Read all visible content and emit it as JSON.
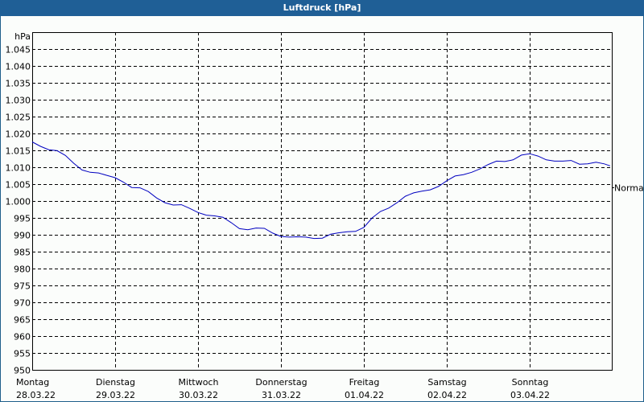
{
  "window": {
    "title": "Luftdruck [hPa]"
  },
  "colors": {
    "titlebar": "#1f5f96",
    "line": "#0000c0",
    "grid": "#000000",
    "background": "#fbfdfb"
  },
  "chart_data": {
    "type": "line",
    "title": "Luftdruck [hPa]",
    "xlabel": "",
    "ylabel": "hPa",
    "ylim": [
      950,
      1050
    ],
    "yticks": [
      950,
      955,
      960,
      965,
      970,
      975,
      980,
      985,
      990,
      995,
      1000,
      1005,
      1010,
      1015,
      1020,
      1025,
      1030,
      1035,
      1040,
      1045
    ],
    "ytick_labels": [
      "950",
      "955",
      "960",
      "965",
      "970",
      "975",
      "980",
      "985",
      "990",
      "995",
      "1.000",
      "1.005",
      "1.010",
      "1.015",
      "1.020",
      "1.025",
      "1.030",
      "1.035",
      "1.040",
      "1.045"
    ],
    "grid": true,
    "reference_label": "Normal",
    "reference_value": 1004,
    "categories": [
      {
        "day": "Montag",
        "date": "28.03.22"
      },
      {
        "day": "Dienstag",
        "date": "29.03.22"
      },
      {
        "day": "Mittwoch",
        "date": "30.03.22"
      },
      {
        "day": "Donnerstag",
        "date": "31.03.22"
      },
      {
        "day": "Freitag",
        "date": "01.04.22"
      },
      {
        "day": "Samstag",
        "date": "02.04.22"
      },
      {
        "day": "Sonntag",
        "date": "03.04.22"
      }
    ],
    "series": [
      {
        "name": "Luftdruck",
        "x_days": [
          0,
          0.1,
          0.2,
          0.3,
          0.4,
          0.5,
          0.6,
          0.7,
          0.8,
          0.9,
          1.0,
          1.1,
          1.2,
          1.3,
          1.4,
          1.5,
          1.6,
          1.7,
          1.8,
          1.9,
          2.0,
          2.1,
          2.2,
          2.3,
          2.4,
          2.5,
          2.6,
          2.7,
          2.8,
          2.9,
          3.0,
          3.1,
          3.2,
          3.3,
          3.4,
          3.5,
          3.6,
          3.7,
          3.8,
          3.9,
          4.0,
          4.1,
          4.2,
          4.3,
          4.4,
          4.5,
          4.6,
          4.7,
          4.8,
          4.9,
          5.0,
          5.1,
          5.2,
          5.3,
          5.4,
          5.5,
          5.6,
          5.7,
          5.8,
          5.9,
          6.0,
          6.1,
          6.2,
          6.3,
          6.4,
          6.5,
          6.6,
          6.7,
          6.8,
          6.9,
          6.97
        ],
        "values": [
          1017.5,
          1016.2,
          1015.2,
          1014.9,
          1013.5,
          1011.2,
          1009.2,
          1008.5,
          1008.3,
          1007.6,
          1006.9,
          1005.6,
          1004.0,
          1003.9,
          1002.8,
          1000.9,
          999.5,
          998.8,
          998.9,
          997.8,
          996.6,
          995.8,
          995.6,
          995.2,
          993.6,
          991.8,
          991.5,
          992.0,
          991.9,
          990.5,
          989.5,
          989.3,
          989.4,
          989.3,
          988.9,
          989.0,
          990.2,
          990.6,
          990.9,
          991.0,
          992.2,
          995.0,
          996.9,
          997.9,
          999.5,
          1001.4,
          1002.4,
          1002.9,
          1003.3,
          1004.3,
          1006.0,
          1007.4,
          1007.8,
          1008.5,
          1009.5,
          1010.8,
          1011.8,
          1011.7,
          1012.2,
          1013.6,
          1014.0,
          1013.3,
          1012.2,
          1011.8,
          1011.8,
          1012.0,
          1010.9,
          1011.0,
          1011.5,
          1011.0,
          1010.4
        ]
      }
    ]
  }
}
